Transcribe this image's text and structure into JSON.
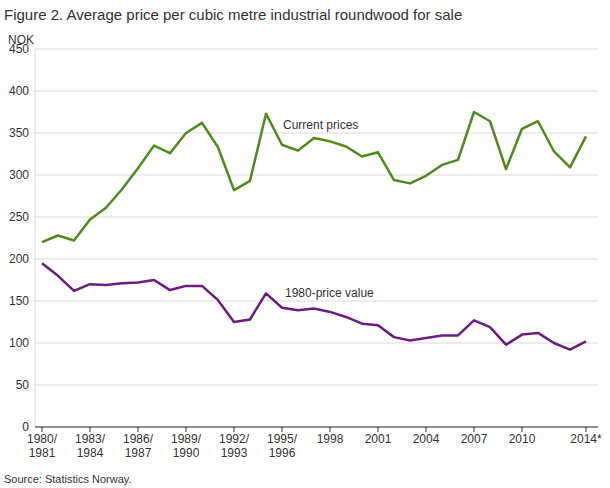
{
  "chart_data": {
    "type": "line",
    "title": "Figure 2. Average price per cubic metre industrial roundwood for sale",
    "y_label": "NOK",
    "source": "Source: Statistics Norway.",
    "categories": [
      "1980/1981",
      null,
      null,
      "1983/1984",
      null,
      null,
      "1986/1987",
      null,
      null,
      "1989/1990",
      null,
      null,
      "1992/1993",
      null,
      null,
      "1995/1996",
      null,
      null,
      "1998",
      null,
      null,
      "2001",
      null,
      null,
      "2004",
      null,
      null,
      "2007",
      null,
      null,
      "2010",
      null,
      null,
      null,
      "2014*"
    ],
    "series": [
      {
        "name": "Current prices",
        "color": "#4e8c1a",
        "values": [
          220,
          228,
          222,
          247,
          261,
          283,
          308,
          335,
          326,
          350,
          362,
          333,
          282,
          293,
          373,
          336,
          329,
          344,
          340,
          334,
          322,
          327,
          294,
          290,
          299,
          312,
          318,
          375,
          364,
          307,
          355,
          364,
          328,
          309,
          346
        ]
      },
      {
        "name": "1980-price value",
        "color": "#6b1d83",
        "values": [
          195,
          180,
          162,
          170,
          169,
          171,
          172,
          175,
          163,
          168,
          168,
          151,
          125,
          128,
          159,
          142,
          139,
          141,
          137,
          131,
          123,
          121,
          107,
          103,
          106,
          109,
          109,
          127,
          119,
          98,
          110,
          112,
          100,
          92,
          102
        ]
      }
    ],
    "ylim": [
      0,
      450
    ],
    "yticks": [
      0,
      50,
      100,
      150,
      200,
      250,
      300,
      350,
      400,
      450
    ],
    "grid": true
  }
}
